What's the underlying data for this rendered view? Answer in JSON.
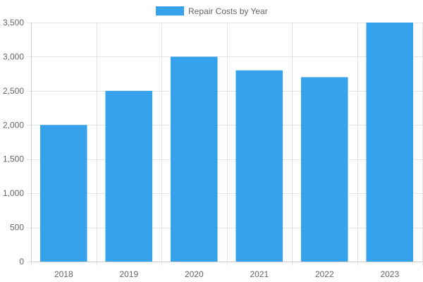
{
  "chart_data": {
    "type": "bar",
    "title": "",
    "xlabel": "",
    "ylabel": "",
    "categories": [
      "2018",
      "2019",
      "2020",
      "2021",
      "2022",
      "2023"
    ],
    "series": [
      {
        "name": "Repair Costs by Year",
        "values": [
          2000,
          2500,
          3000,
          2800,
          2700,
          3500
        ],
        "color": "#36A2EB"
      }
    ],
    "ylim": [
      0,
      3500
    ],
    "yticks": [
      0,
      500,
      1000,
      1500,
      2000,
      2500,
      3000,
      3500
    ],
    "ytick_labels": [
      "0",
      "500",
      "1,000",
      "1,500",
      "2,000",
      "2,500",
      "3,000",
      "3,500"
    ],
    "grid": true,
    "legend_position": "top-center"
  },
  "colors": {
    "grid": "#e5e5e5",
    "axis": "#cccccc",
    "tick_text": "#666666"
  }
}
